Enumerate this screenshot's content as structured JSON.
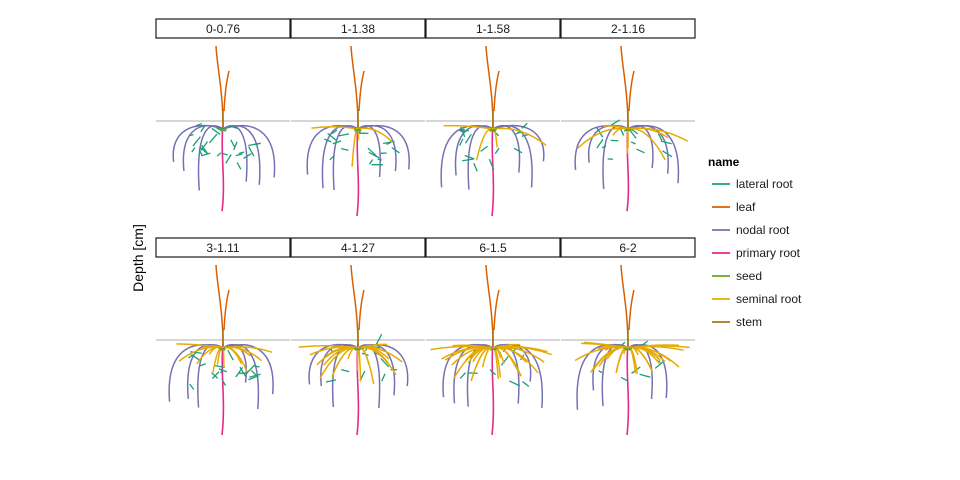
{
  "chart_data": {
    "type": "facet-root-architecture",
    "ylabel": "Depth [cm]",
    "legend": {
      "title": "name",
      "entries": [
        {
          "name": "lateral root",
          "color": "#1b9e77"
        },
        {
          "name": "leaf",
          "color": "#d95f02"
        },
        {
          "name": "nodal root",
          "color": "#7570b3"
        },
        {
          "name": "primary root",
          "color": "#e7298a"
        },
        {
          "name": "seed",
          "color": "#66a61e"
        },
        {
          "name": "seminal root",
          "color": "#e6ab02"
        },
        {
          "name": "stem",
          "color": "#a6761d"
        }
      ]
    },
    "ground_line_color": "#bdbdbd",
    "panels": [
      {
        "label": "0-0.76",
        "seminal_roots": 0,
        "nodal_roots": 6,
        "laterals": 28,
        "primary_depth": 0.95
      },
      {
        "label": "1-1.38",
        "seminal_roots": 4,
        "nodal_roots": 6,
        "laterals": 18,
        "primary_depth": 1.0
      },
      {
        "label": "1-1.58",
        "seminal_roots": 4,
        "nodal_roots": 6,
        "laterals": 18,
        "primary_depth": 1.0
      },
      {
        "label": "2-1.16",
        "seminal_roots": 8,
        "nodal_roots": 6,
        "laterals": 14,
        "primary_depth": 0.95
      },
      {
        "label": "3-1.11",
        "seminal_roots": 14,
        "nodal_roots": 6,
        "laterals": 20,
        "primary_depth": 1.0
      },
      {
        "label": "4-1.27",
        "seminal_roots": 18,
        "nodal_roots": 6,
        "laterals": 14,
        "primary_depth": 1.0
      },
      {
        "label": "6-1.5",
        "seminal_roots": 26,
        "nodal_roots": 6,
        "laterals": 10,
        "primary_depth": 1.0
      },
      {
        "label": "6-2",
        "seminal_roots": 28,
        "nodal_roots": 5,
        "laterals": 8,
        "primary_depth": 1.0
      }
    ]
  }
}
